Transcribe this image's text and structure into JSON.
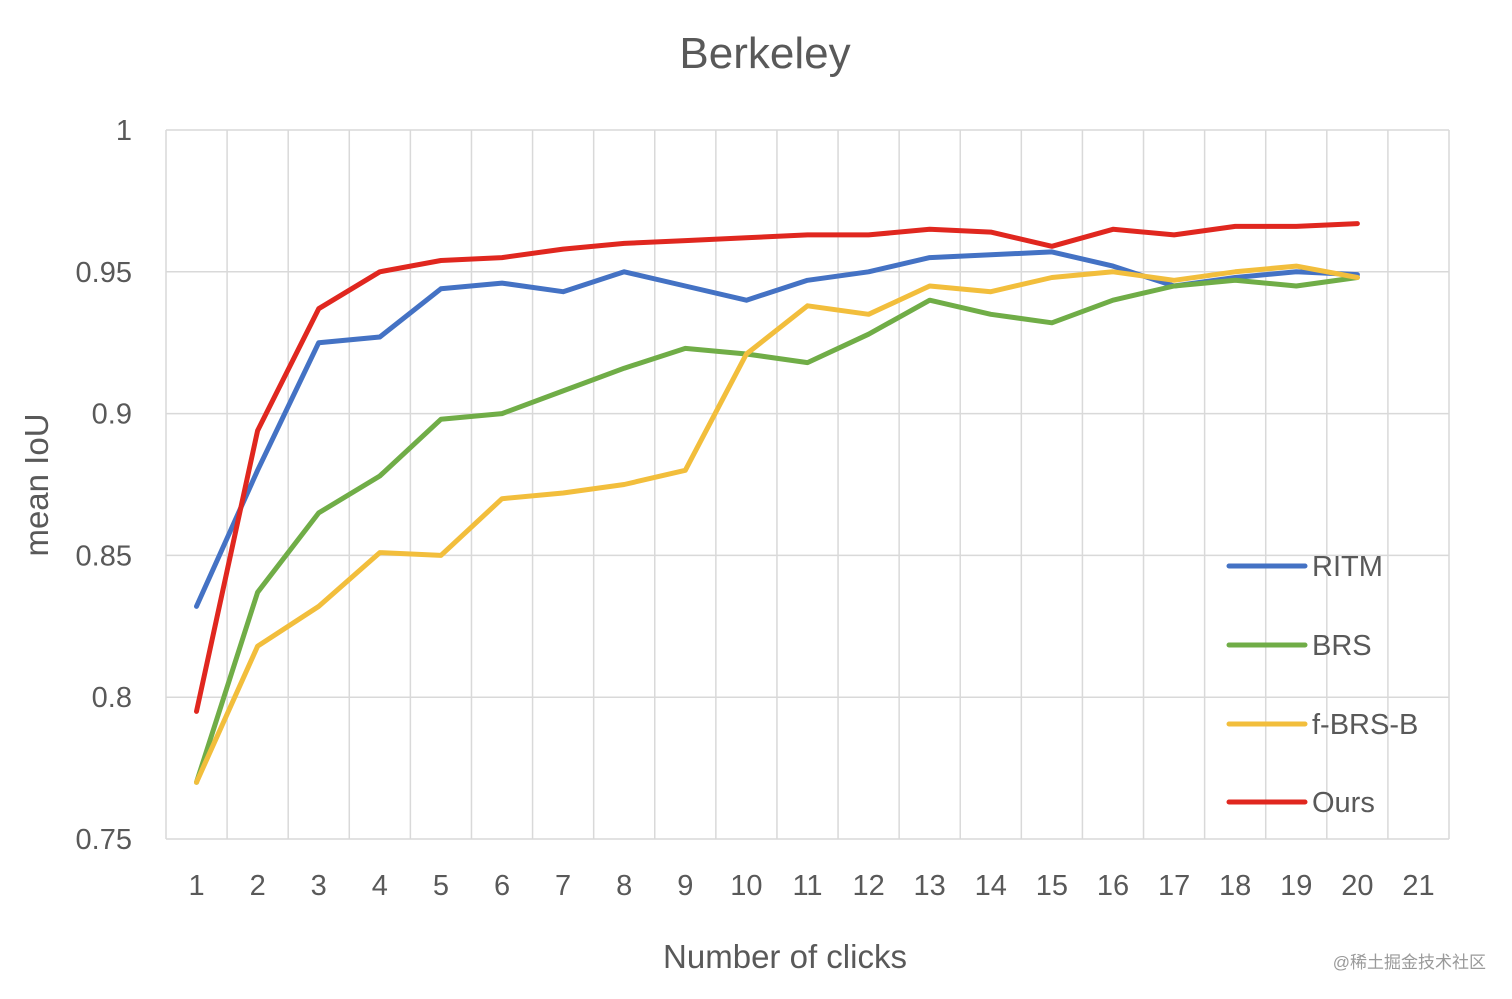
{
  "chart_data": {
    "type": "line",
    "title": "Berkeley",
    "xlabel": "Number of clicks",
    "ylabel": "mean IoU",
    "x_ticks": [
      "1",
      "2",
      "3",
      "4",
      "5",
      "6",
      "7",
      "8",
      "9",
      "10",
      "11",
      "12",
      "13",
      "14",
      "15",
      "16",
      "17",
      "18",
      "19",
      "20",
      "21"
    ],
    "y_ticks": [
      "0.75",
      "0.8",
      "0.85",
      "0.9",
      "0.95",
      "1"
    ],
    "xlim": [
      1,
      21
    ],
    "ylim": [
      0.75,
      1.0
    ],
    "grid": true,
    "legend_position": "right",
    "x": [
      1,
      2,
      3,
      4,
      5,
      6,
      7,
      8,
      9,
      10,
      11,
      12,
      13,
      14,
      15,
      16,
      17,
      18,
      19,
      20
    ],
    "series": [
      {
        "name": "RITM",
        "color": "#4472C4",
        "values": [
          0.832,
          0.88,
          0.925,
          0.927,
          0.944,
          0.946,
          0.943,
          0.95,
          0.945,
          0.94,
          0.947,
          0.95,
          0.955,
          0.956,
          0.957,
          0.952,
          0.945,
          0.948,
          0.95,
          0.949
        ]
      },
      {
        "name": "BRS",
        "color": "#70AD47",
        "values": [
          0.77,
          0.837,
          0.865,
          0.878,
          0.898,
          0.9,
          0.908,
          0.916,
          0.923,
          0.921,
          0.918,
          0.928,
          0.94,
          0.935,
          0.932,
          0.94,
          0.945,
          0.947,
          0.945,
          0.948
        ]
      },
      {
        "name": "f-BRS-B",
        "color": "#F2BE3C",
        "values": [
          0.77,
          0.818,
          0.832,
          0.851,
          0.85,
          0.87,
          0.872,
          0.875,
          0.88,
          0.921,
          0.938,
          0.935,
          0.945,
          0.943,
          0.948,
          0.95,
          0.947,
          0.95,
          0.952,
          0.948
        ]
      },
      {
        "name": "Ours",
        "color": "#E0271F",
        "values": [
          0.795,
          0.894,
          0.937,
          0.95,
          0.954,
          0.955,
          0.958,
          0.96,
          0.961,
          0.962,
          0.963,
          0.963,
          0.965,
          0.964,
          0.959,
          0.965,
          0.963,
          0.966,
          0.966,
          0.967
        ]
      }
    ]
  },
  "watermark": "@稀土掘金技术社区"
}
